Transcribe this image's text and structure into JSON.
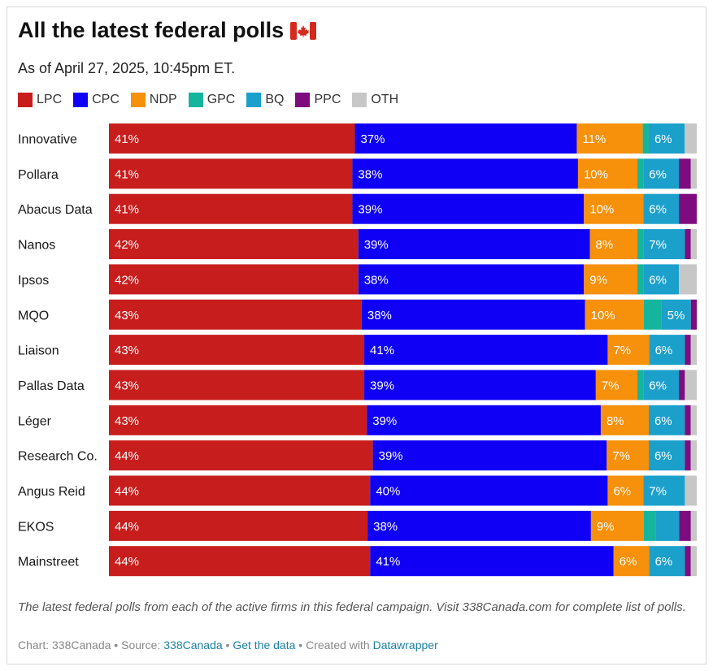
{
  "header": {
    "title": "All the latest federal polls",
    "subtitle": "As of April 27, 2025, 10:45pm ET."
  },
  "chart_data": {
    "type": "bar",
    "orientation": "horizontal",
    "stacked": true,
    "title": "All the latest federal polls",
    "subtitle": "As of April 27, 2025, 10:45pm ET.",
    "categories": [
      "Innovative",
      "Pollara",
      "Abacus Data",
      "Nanos",
      "Ipsos",
      "MQO",
      "Liaison",
      "Pallas Data",
      "Léger",
      "Research Co.",
      "Angus Reid",
      "EKOS",
      "Mainstreet"
    ],
    "series": [
      {
        "name": "LPC",
        "color": "#c71e1d",
        "values": [
          41,
          41,
          41,
          42,
          42,
          43,
          43,
          43,
          43,
          44,
          44,
          44,
          44
        ]
      },
      {
        "name": "CPC",
        "color": "#0f00f5",
        "values": [
          37,
          38,
          39,
          39,
          38,
          38,
          41,
          39,
          39,
          39,
          40,
          38,
          41
        ]
      },
      {
        "name": "NDP",
        "color": "#f7900a",
        "values": [
          11,
          10,
          10,
          8,
          9,
          10,
          7,
          7,
          8,
          7,
          6,
          9,
          6
        ]
      },
      {
        "name": "GPC",
        "color": "#15b59d",
        "values": [
          1,
          1,
          0,
          1,
          1,
          3,
          0,
          1,
          0,
          0,
          0,
          2,
          0
        ]
      },
      {
        "name": "BQ",
        "color": "#1ba0cc",
        "values": [
          6,
          6,
          6,
          7,
          6,
          5,
          6,
          6,
          6,
          6,
          7,
          4,
          6
        ]
      },
      {
        "name": "PPC",
        "color": "#7e0c7e",
        "values": [
          0,
          2,
          3,
          1,
          0,
          1,
          1,
          1,
          1,
          1,
          0,
          2,
          1
        ]
      },
      {
        "name": "OTH",
        "color": "#c7c7c7",
        "values": [
          2,
          1,
          0,
          1,
          3,
          0,
          1,
          2,
          1,
          1,
          2,
          1,
          1
        ]
      }
    ],
    "data_labels": [
      [
        "41%",
        "37%",
        "11%",
        "",
        "6%",
        "",
        ""
      ],
      [
        "41%",
        "38%",
        "10%",
        "",
        "6%",
        "",
        ""
      ],
      [
        "41%",
        "39%",
        "10%",
        "",
        "6%",
        "",
        ""
      ],
      [
        "42%",
        "39%",
        "8%",
        "",
        "7%",
        "",
        ""
      ],
      [
        "42%",
        "38%",
        "9%",
        "",
        "6%",
        "",
        ""
      ],
      [
        "43%",
        "38%",
        "10%",
        "",
        "5%",
        "",
        ""
      ],
      [
        "43%",
        "41%",
        "7%",
        "",
        "6%",
        "",
        ""
      ],
      [
        "43%",
        "39%",
        "7%",
        "",
        "6%",
        "",
        ""
      ],
      [
        "43%",
        "39%",
        "8%",
        "",
        "6%",
        "",
        ""
      ],
      [
        "44%",
        "39%",
        "7%",
        "",
        "6%",
        "",
        ""
      ],
      [
        "44%",
        "40%",
        "6%",
        "",
        "7%",
        "",
        ""
      ],
      [
        "44%",
        "38%",
        "9%",
        "",
        "",
        "",
        ""
      ],
      [
        "44%",
        "41%",
        "6%",
        "",
        "6%",
        "",
        ""
      ]
    ],
    "xlim": [
      0,
      100
    ],
    "legend": "top-left"
  },
  "notes": "The latest federal polls from each of the active firms in this federal campaign. Visit 338Canada.com for complete list of polls.",
  "footer": {
    "chart_prefix": "Chart: 338Canada",
    "sep1": " • Source: ",
    "source_link": "338Canada",
    "sep2": " • ",
    "data_link": "Get the data",
    "sep3": " • Created with ",
    "tool_link": "Datawrapper"
  },
  "icons": {
    "flag": "canada-flag-icon"
  }
}
